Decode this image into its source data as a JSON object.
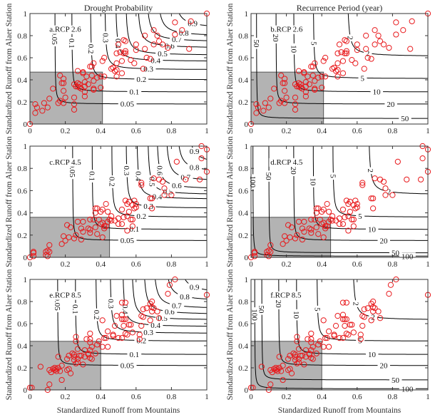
{
  "figure": {
    "left_column_title": "Drought Probability",
    "right_column_title": "Recurrence Period (year)",
    "ylabel": "Standardized Runoff from Alaer Station",
    "xlabel": "Standardized Runoff from Mountains"
  },
  "colors": {
    "points": "#e8191c",
    "shade": "#b3b3b3",
    "contour": "#000000"
  },
  "chart_data": {
    "type": "scatter",
    "xlim": [
      0,
      1
    ],
    "ylim": [
      0,
      1
    ],
    "ticks": [
      "0",
      "0.2",
      "0.4",
      "0.6",
      "0.8",
      "1"
    ],
    "tick_values": [
      0,
      0.2,
      0.4,
      0.6,
      0.8,
      1
    ],
    "grid": false,
    "panels": [
      {
        "label": "a.RCP 2.6",
        "scenario": "RCP 2.6",
        "kind": "probability",
        "shaded": {
          "x_max": 0.41,
          "y_max": 0.47
        },
        "contours": [
          [
            0.05,
            0.14,
            0.18
          ],
          [
            0.1,
            0.235,
            0.29
          ],
          [
            0.2,
            0.34,
            0.4
          ],
          [
            0.3,
            0.42,
            0.49
          ],
          [
            0.4,
            0.48,
            0.565
          ],
          [
            0.5,
            0.535,
            0.62
          ],
          [
            0.6,
            0.6,
            0.685
          ],
          [
            0.7,
            0.65,
            0.74
          ],
          [
            0.8,
            0.71,
            0.79
          ],
          [
            0.9,
            0.8,
            0.86
          ]
        ]
      },
      {
        "label": "b.RCP 2.6",
        "scenario": "RCP 2.6",
        "kind": "recurrence",
        "shaded": {
          "x_max": 0.41,
          "y_max": 0.47
        },
        "contours": [
          [
            2,
            0.54,
            0.61
          ],
          [
            5,
            0.35,
            0.41
          ],
          [
            10,
            0.24,
            0.29
          ],
          [
            20,
            0.14,
            0.18
          ],
          [
            50,
            0.03,
            0.05
          ]
        ]
      },
      {
        "label": "c.RCP 4.5",
        "scenario": "RCP 4.5",
        "kind": "probability",
        "shaded": {
          "x_max": 0.45,
          "y_max": 0.36
        },
        "contours": [
          [
            0.05,
            0.24,
            0.15
          ],
          [
            0.1,
            0.35,
            0.25
          ],
          [
            0.2,
            0.46,
            0.36
          ],
          [
            0.3,
            0.54,
            0.44
          ],
          [
            0.4,
            0.6,
            0.52
          ],
          [
            0.5,
            0.66,
            0.56
          ],
          [
            0.6,
            0.71,
            0.61
          ],
          [
            0.7,
            0.76,
            0.68
          ],
          [
            0.8,
            0.82,
            0.76
          ],
          [
            0.9,
            0.88,
            0.83
          ]
        ]
      },
      {
        "label": "d.RCP 4.5",
        "scenario": "RCP 4.5",
        "kind": "recurrence",
        "shaded": {
          "x_max": 0.45,
          "y_max": 0.36
        },
        "contours": [
          [
            2,
            0.66,
            0.56
          ],
          [
            5,
            0.46,
            0.36
          ],
          [
            10,
            0.35,
            0.25
          ],
          [
            20,
            0.24,
            0.15
          ],
          [
            50,
            0.1,
            0.04
          ],
          [
            100,
            0.01,
            0.01
          ]
        ]
      },
      {
        "label": "e.RCP 8.5",
        "scenario": "RCP 8.5",
        "kind": "probability",
        "shaded": {
          "x_max": 0.4,
          "y_max": 0.44
        },
        "contours": [
          [
            0.05,
            0.155,
            0.22
          ],
          [
            0.1,
            0.255,
            0.32
          ],
          [
            0.2,
            0.37,
            0.44
          ],
          [
            0.3,
            0.45,
            0.51
          ],
          [
            0.4,
            0.52,
            0.57
          ],
          [
            0.5,
            0.57,
            0.63
          ],
          [
            0.6,
            0.635,
            0.68
          ],
          [
            0.7,
            0.69,
            0.73
          ],
          [
            0.8,
            0.755,
            0.8
          ],
          [
            0.9,
            0.83,
            0.87
          ]
        ]
      },
      {
        "label": "f.RCP 8.5",
        "scenario": "RCP 8.5",
        "kind": "recurrence",
        "shaded": {
          "x_max": 0.4,
          "y_max": 0.44
        },
        "contours": [
          [
            2,
            0.57,
            0.63
          ],
          [
            5,
            0.37,
            0.44
          ],
          [
            10,
            0.255,
            0.32
          ],
          [
            20,
            0.155,
            0.22
          ],
          [
            50,
            0.06,
            0.09
          ],
          [
            100,
            0.02,
            0.01
          ]
        ]
      }
    ],
    "points_by_scenario": {
      "RCP 2.6": [
        [
          0,
          0
        ],
        [
          0.03,
          0.1
        ],
        [
          0.03,
          0.18
        ],
        [
          0.04,
          0.15
        ],
        [
          0.07,
          0.12
        ],
        [
          0.08,
          0.19
        ],
        [
          0.1,
          0.15
        ],
        [
          0.11,
          0.23
        ],
        [
          0.13,
          0.32
        ],
        [
          0.16,
          0.19
        ],
        [
          0.17,
          0.44
        ],
        [
          0.17,
          0.21
        ],
        [
          0.18,
          0.37
        ],
        [
          0.19,
          0.41
        ],
        [
          0.19,
          0.37
        ],
        [
          0.19,
          0.3
        ],
        [
          0.19,
          0.19
        ],
        [
          0.2,
          0.24
        ],
        [
          0.25,
          0.36
        ],
        [
          0.25,
          0.24
        ],
        [
          0.25,
          0.18
        ],
        [
          0.25,
          0.13
        ],
        [
          0.26,
          0.34
        ],
        [
          0.27,
          0.37
        ],
        [
          0.27,
          0.34
        ],
        [
          0.27,
          0.48
        ],
        [
          0.28,
          0.36
        ],
        [
          0.28,
          0.33
        ],
        [
          0.29,
          0.32
        ],
        [
          0.3,
          0.47
        ],
        [
          0.3,
          0.46
        ],
        [
          0.31,
          0.25
        ],
        [
          0.31,
          0.29
        ],
        [
          0.31,
          0.34
        ],
        [
          0.31,
          0.38
        ],
        [
          0.32,
          0.43
        ],
        [
          0.33,
          0.36
        ],
        [
          0.34,
          0.52
        ],
        [
          0.35,
          0.52
        ],
        [
          0.35,
          0.44
        ],
        [
          0.36,
          0.39
        ],
        [
          0.36,
          0.31
        ],
        [
          0.36,
          0.32
        ],
        [
          0.36,
          0.55
        ],
        [
          0.38,
          0.42
        ],
        [
          0.4,
          0.33
        ],
        [
          0.4,
          0.43
        ],
        [
          0.41,
          0.57
        ],
        [
          0.42,
          0.43
        ],
        [
          0.42,
          0.6
        ],
        [
          0.46,
          0.5
        ],
        [
          0.47,
          0.51
        ],
        [
          0.48,
          0.48
        ],
        [
          0.49,
          0.55
        ],
        [
          0.49,
          0.49
        ],
        [
          0.49,
          0.43
        ],
        [
          0.49,
          0.64
        ],
        [
          0.5,
          0.72
        ],
        [
          0.51,
          0.65
        ],
        [
          0.52,
          0.46
        ],
        [
          0.52,
          0.57
        ],
        [
          0.53,
          0.76
        ],
        [
          0.53,
          0.64
        ],
        [
          0.54,
          0.75
        ],
        [
          0.54,
          0.66
        ],
        [
          0.54,
          0.64
        ],
        [
          0.57,
          0.58
        ],
        [
          0.59,
          0.55
        ],
        [
          0.6,
          0.67
        ],
        [
          0.6,
          0.72
        ],
        [
          0.64,
          0.5
        ],
        [
          0.65,
          0.8
        ],
        [
          0.65,
          0.68
        ],
        [
          0.66,
          0.6
        ],
        [
          0.68,
          0.59
        ],
        [
          0.7,
          0.72
        ],
        [
          0.7,
          0.85
        ],
        [
          0.72,
          0.8
        ],
        [
          0.73,
          0.75
        ],
        [
          0.75,
          0.72
        ],
        [
          0.78,
          0.69
        ],
        [
          0.82,
          0.81
        ],
        [
          0.82,
          0.92
        ],
        [
          0.86,
          0.85
        ],
        [
          0.9,
          0.68
        ],
        [
          0.91,
          0.93
        ],
        [
          1,
          1
        ]
      ],
      "RCP 4.5": [
        [
          0,
          0
        ],
        [
          0.02,
          0.04
        ],
        [
          0.02,
          0.05
        ],
        [
          0.02,
          0.01
        ],
        [
          0.09,
          0.02
        ],
        [
          0.09,
          0.05
        ],
        [
          0.1,
          0.06
        ],
        [
          0.1,
          0.01
        ],
        [
          0.11,
          0.05
        ],
        [
          0.11,
          0.11
        ],
        [
          0.18,
          0.12
        ],
        [
          0.19,
          0.19
        ],
        [
          0.2,
          0.15
        ],
        [
          0.21,
          0.29
        ],
        [
          0.22,
          0.18
        ],
        [
          0.23,
          0.27
        ],
        [
          0.25,
          0.17
        ],
        [
          0.26,
          0.2
        ],
        [
          0.27,
          0.32
        ],
        [
          0.29,
          0.16
        ],
        [
          0.29,
          0.26
        ],
        [
          0.3,
          0.32
        ],
        [
          0.3,
          0.23
        ],
        [
          0.33,
          0.26
        ],
        [
          0.34,
          0.22
        ],
        [
          0.34,
          0.25
        ],
        [
          0.34,
          0.34
        ],
        [
          0.36,
          0.34
        ],
        [
          0.37,
          0.44
        ],
        [
          0.37,
          0.4
        ],
        [
          0.37,
          0.27
        ],
        [
          0.38,
          0.44
        ],
        [
          0.38,
          0.21
        ],
        [
          0.39,
          0.34
        ],
        [
          0.4,
          0.41
        ],
        [
          0.4,
          0.3
        ],
        [
          0.41,
          0.31
        ],
        [
          0.41,
          0.43
        ],
        [
          0.41,
          0.18
        ],
        [
          0.42,
          0.28
        ],
        [
          0.42,
          0.26
        ],
        [
          0.43,
          0.28
        ],
        [
          0.43,
          0.48
        ],
        [
          0.44,
          0.41
        ],
        [
          0.44,
          0.32
        ],
        [
          0.45,
          0.34
        ],
        [
          0.46,
          0.33
        ],
        [
          0.46,
          0.37
        ],
        [
          0.48,
          0.33
        ],
        [
          0.5,
          0.35
        ],
        [
          0.5,
          0.3
        ],
        [
          0.52,
          0.3
        ],
        [
          0.52,
          0.43
        ],
        [
          0.53,
          0.36
        ],
        [
          0.54,
          0.51
        ],
        [
          0.55,
          0.48
        ],
        [
          0.55,
          0.37
        ],
        [
          0.55,
          0.24
        ],
        [
          0.56,
          0.41
        ],
        [
          0.56,
          0.5
        ],
        [
          0.57,
          0.34
        ],
        [
          0.58,
          0.47
        ],
        [
          0.58,
          0.34
        ],
        [
          0.58,
          0.28
        ],
        [
          0.59,
          0.44
        ],
        [
          0.59,
          0.51
        ],
        [
          0.6,
          0.45
        ],
        [
          0.6,
          0.48
        ],
        [
          0.63,
          0.67
        ],
        [
          0.63,
          0.65
        ],
        [
          0.68,
          0.53
        ],
        [
          0.69,
          0.44
        ],
        [
          0.69,
          0.53
        ],
        [
          0.7,
          0.71
        ],
        [
          0.73,
          0.7
        ],
        [
          0.75,
          0.68
        ],
        [
          0.76,
          0.56
        ],
        [
          0.76,
          0.62
        ],
        [
          0.8,
          0.56
        ],
        [
          0.83,
          0.86
        ],
        [
          0.88,
          0.7
        ],
        [
          0.96,
          0.7
        ],
        [
          0.97,
          1.0
        ],
        [
          0.97,
          0.89
        ],
        [
          1.0,
          0.97
        ],
        [
          1.0,
          0.77
        ]
      ],
      "RCP 8.5": [
        [
          0,
          0.02
        ],
        [
          0.01,
          0.02
        ],
        [
          0.06,
          0.21
        ],
        [
          0.1,
          0.0
        ],
        [
          0.11,
          0.05
        ],
        [
          0.11,
          0.18
        ],
        [
          0.12,
          0.16
        ],
        [
          0.13,
          0.19
        ],
        [
          0.14,
          0.18
        ],
        [
          0.14,
          0.2
        ],
        [
          0.15,
          0.19
        ],
        [
          0.15,
          0.17
        ],
        [
          0.16,
          0.2
        ],
        [
          0.16,
          0.3
        ],
        [
          0.17,
          0.17
        ],
        [
          0.18,
          0.22
        ],
        [
          0.18,
          0.09
        ],
        [
          0.21,
          0.28
        ],
        [
          0.21,
          0.18
        ],
        [
          0.22,
          0.31
        ],
        [
          0.22,
          0.19
        ],
        [
          0.23,
          0.15
        ],
        [
          0.24,
          0.33
        ],
        [
          0.25,
          0.27
        ],
        [
          0.25,
          0.32
        ],
        [
          0.25,
          0.3
        ],
        [
          0.26,
          0.24
        ],
        [
          0.26,
          0.48
        ],
        [
          0.26,
          0.44
        ],
        [
          0.27,
          0.37
        ],
        [
          0.27,
          0.28
        ],
        [
          0.27,
          0.25
        ],
        [
          0.28,
          0.31
        ],
        [
          0.29,
          0.31
        ],
        [
          0.3,
          0.23
        ],
        [
          0.31,
          0.36
        ],
        [
          0.31,
          0.3
        ],
        [
          0.32,
          0.46
        ],
        [
          0.33,
          0.32
        ],
        [
          0.33,
          0.33
        ],
        [
          0.34,
          0.51
        ],
        [
          0.34,
          0.46
        ],
        [
          0.34,
          0.43
        ],
        [
          0.34,
          0.36
        ],
        [
          0.34,
          0.29
        ],
        [
          0.35,
          0.39
        ],
        [
          0.35,
          0.28
        ],
        [
          0.37,
          0.33
        ],
        [
          0.38,
          0.41
        ],
        [
          0.39,
          0.44
        ],
        [
          0.41,
          0.39
        ],
        [
          0.41,
          0.63
        ],
        [
          0.42,
          0.47
        ],
        [
          0.43,
          0.47
        ],
        [
          0.44,
          0.53
        ],
        [
          0.44,
          0.39
        ],
        [
          0.47,
          0.5
        ],
        [
          0.47,
          0.49
        ],
        [
          0.48,
          0.58
        ],
        [
          0.49,
          0.67
        ],
        [
          0.5,
          0.47
        ],
        [
          0.52,
          0.79
        ],
        [
          0.52,
          0.68
        ],
        [
          0.52,
          0.64
        ],
        [
          0.52,
          0.47
        ],
        [
          0.53,
          0.64
        ],
        [
          0.53,
          0.58
        ],
        [
          0.54,
          0.79
        ],
        [
          0.54,
          0.64
        ],
        [
          0.54,
          0.51
        ],
        [
          0.55,
          0.5
        ],
        [
          0.56,
          0.59
        ],
        [
          0.57,
          0.59
        ],
        [
          0.58,
          0.52
        ],
        [
          0.62,
          0.5
        ],
        [
          0.62,
          0.46
        ],
        [
          0.63,
          0.58
        ],
        [
          0.63,
          0.67
        ],
        [
          0.64,
          0.66
        ],
        [
          0.64,
          0.73
        ],
        [
          0.66,
          0.74
        ],
        [
          0.68,
          0.63
        ],
        [
          0.68,
          0.78
        ],
        [
          0.69,
          0.8
        ],
        [
          0.69,
          0.71
        ],
        [
          0.69,
          0.75
        ],
        [
          0.7,
          0.74
        ],
        [
          0.72,
          0.71
        ],
        [
          0.73,
          0.65
        ],
        [
          0.78,
          0.87
        ],
        [
          0.79,
          0.95
        ],
        [
          0.82,
          1.0
        ],
        [
          1.0,
          0.86
        ]
      ]
    }
  }
}
